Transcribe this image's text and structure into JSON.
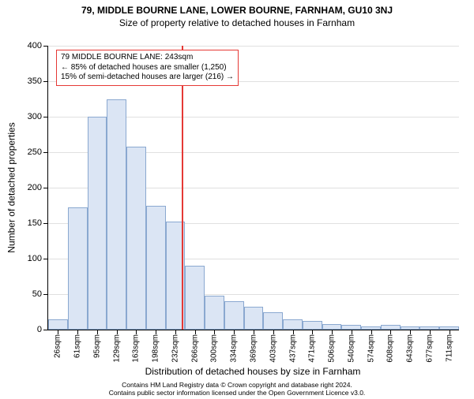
{
  "title": "79, MIDDLE BOURNE LANE, LOWER BOURNE, FARNHAM, GU10 3NJ",
  "subtitle": "Size of property relative to detached houses in Farnham",
  "chart": {
    "type": "histogram",
    "y_axis_title": "Number of detached properties",
    "x_axis_title": "Distribution of detached houses by size in Farnham",
    "ylim": [
      0,
      400
    ],
    "ytick_step": 50,
    "y_ticks": [
      0,
      50,
      100,
      150,
      200,
      250,
      300,
      350,
      400
    ],
    "x_labels": [
      "26sqm",
      "61sqm",
      "95sqm",
      "129sqm",
      "163sqm",
      "198sqm",
      "232sqm",
      "266sqm",
      "300sqm",
      "334sqm",
      "369sqm",
      "403sqm",
      "437sqm",
      "471sqm",
      "506sqm",
      "540sqm",
      "574sqm",
      "608sqm",
      "643sqm",
      "677sqm",
      "711sqm"
    ],
    "values": [
      15,
      172,
      300,
      325,
      258,
      175,
      152,
      90,
      48,
      40,
      32,
      25,
      15,
      12,
      8,
      7,
      5,
      7,
      4,
      5,
      4
    ],
    "bar_fill": "#dbe5f4",
    "bar_border": "#8aa8d0",
    "grid_color": "#e0e0e0",
    "background": "#ffffff",
    "reference_value": 243,
    "reference_color": "#e53935",
    "annotation": {
      "line1": "79 MIDDLE BOURNE LANE: 243sqm",
      "line2": "← 85% of detached houses are smaller (1,250)",
      "line3": "15% of semi-detached houses are larger (216) →"
    }
  },
  "footer": {
    "line1": "Contains HM Land Registry data © Crown copyright and database right 2024.",
    "line2": "Contains public sector information licensed under the Open Government Licence v3.0."
  }
}
